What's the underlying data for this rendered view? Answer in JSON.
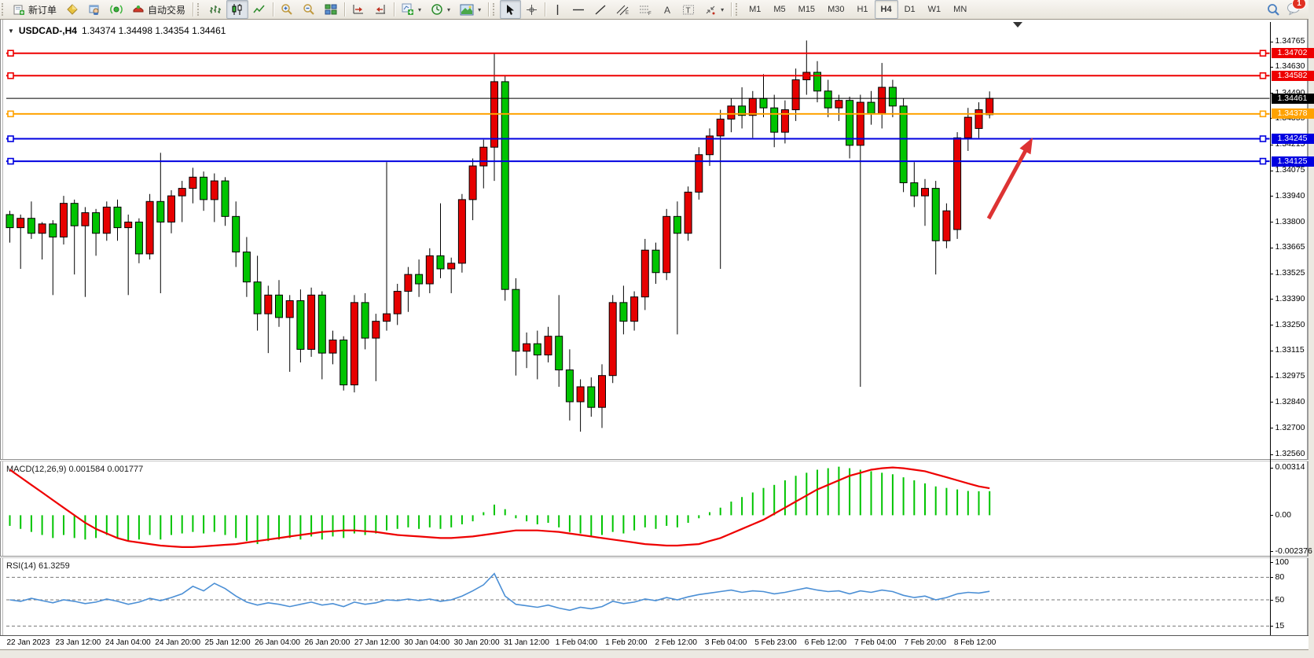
{
  "toolbar": {
    "new_order": "新订单",
    "auto_trading": "自动交易",
    "timeframes": [
      "M1",
      "M5",
      "M15",
      "M30",
      "H1",
      "H4",
      "D1",
      "W1",
      "MN"
    ],
    "active_timeframe": "H4",
    "notification_count": "1"
  },
  "chart": {
    "title_symbol": "USDCAD-,H4",
    "title_quote": "1.34374 1.34498 1.34354 1.34461",
    "open": "1.34374",
    "high": "1.34498",
    "low": "1.34354",
    "close": "1.34461"
  },
  "chart_data": {
    "type": "candlestick",
    "symbol": "USDCAD-",
    "period": "H4",
    "up_color": "#e60000",
    "down_color": "#00c400",
    "price_axis_ticks": [
      "1.34765",
      "1.34630",
      "1.34490",
      "1.34355",
      "1.34215",
      "1.34075",
      "1.33940",
      "1.33800",
      "1.33665",
      "1.33525",
      "1.33390",
      "1.33250",
      "1.33115",
      "1.32975",
      "1.32840",
      "1.32700",
      "1.32560"
    ],
    "levels": [
      {
        "price": 1.34702,
        "label": "1.34702",
        "color": "#ee0000",
        "handles": true
      },
      {
        "price": 1.34582,
        "label": "1.34582",
        "color": "#ee0000",
        "handles": true
      },
      {
        "price": 1.34461,
        "label": "1.34461",
        "color": "#000000",
        "handles": false
      },
      {
        "price": 1.34378,
        "label": "1.34378",
        "color": "#ffa200",
        "handles": true
      },
      {
        "price": 1.34245,
        "label": "1.34245",
        "color": "#0000e0",
        "handles": true
      },
      {
        "price": 1.34125,
        "label": "1.34125",
        "color": "#0000e0",
        "handles": true
      }
    ],
    "x_labels": [
      "22 Jan 2023",
      "23 Jan 12:00",
      "24 Jan 04:00",
      "24 Jan 20:00",
      "25 Jan 12:00",
      "26 Jan 04:00",
      "26 Jan 20:00",
      "27 Jan 12:00",
      "30 Jan 04:00",
      "30 Jan 20:00",
      "31 Jan 12:00",
      "1 Feb 04:00",
      "1 Feb 20:00",
      "2 Feb 12:00",
      "3 Feb 04:00",
      "5 Feb 23:00",
      "6 Feb 12:00",
      "7 Feb 04:00",
      "7 Feb 20:00",
      "8 Feb 12:00"
    ],
    "candles": [
      [
        1.3384,
        1.3386,
        1.3369,
        1.3377
      ],
      [
        1.3377,
        1.3384,
        1.3355,
        1.3382
      ],
      [
        1.3382,
        1.3391,
        1.3371,
        1.3374
      ],
      [
        1.3374,
        1.338,
        1.336,
        1.3379
      ],
      [
        1.3379,
        1.3381,
        1.3341,
        1.3372
      ],
      [
        1.3372,
        1.3394,
        1.3368,
        1.339
      ],
      [
        1.339,
        1.3392,
        1.3352,
        1.3378
      ],
      [
        1.3378,
        1.3388,
        1.334,
        1.3385
      ],
      [
        1.3385,
        1.3387,
        1.3362,
        1.3374
      ],
      [
        1.3374,
        1.3391,
        1.337,
        1.3388
      ],
      [
        1.3388,
        1.3392,
        1.337,
        1.3377
      ],
      [
        1.3377,
        1.3384,
        1.3341,
        1.338
      ],
      [
        1.338,
        1.3382,
        1.3358,
        1.3363
      ],
      [
        1.3363,
        1.3395,
        1.336,
        1.3391
      ],
      [
        1.3391,
        1.3417,
        1.3342,
        1.338
      ],
      [
        1.338,
        1.3397,
        1.3374,
        1.3394
      ],
      [
        1.3394,
        1.3402,
        1.338,
        1.3398
      ],
      [
        1.3398,
        1.3409,
        1.339,
        1.3404
      ],
      [
        1.3404,
        1.3407,
        1.3386,
        1.3392
      ],
      [
        1.3392,
        1.3406,
        1.338,
        1.3402
      ],
      [
        1.3402,
        1.3404,
        1.3378,
        1.3383
      ],
      [
        1.3383,
        1.3391,
        1.3356,
        1.3364
      ],
      [
        1.3364,
        1.3372,
        1.334,
        1.3348
      ],
      [
        1.3348,
        1.3362,
        1.3322,
        1.3331
      ],
      [
        1.3331,
        1.3346,
        1.331,
        1.3341
      ],
      [
        1.3341,
        1.3349,
        1.3324,
        1.3329
      ],
      [
        1.3329,
        1.3341,
        1.33,
        1.3338
      ],
      [
        1.3338,
        1.3344,
        1.3305,
        1.3312
      ],
      [
        1.3312,
        1.3345,
        1.3308,
        1.3341
      ],
      [
        1.3341,
        1.3343,
        1.3296,
        1.331
      ],
      [
        1.331,
        1.3322,
        1.3304,
        1.3317
      ],
      [
        1.3317,
        1.3319,
        1.329,
        1.3293
      ],
      [
        1.3293,
        1.3341,
        1.3289,
        1.3337
      ],
      [
        1.3337,
        1.3342,
        1.3312,
        1.3318
      ],
      [
        1.3318,
        1.3331,
        1.3295,
        1.3327
      ],
      [
        1.3327,
        1.3412,
        1.3322,
        1.3331
      ],
      [
        1.3331,
        1.3347,
        1.3325,
        1.3343
      ],
      [
        1.3343,
        1.3356,
        1.3332,
        1.3352
      ],
      [
        1.3352,
        1.336,
        1.334,
        1.3347
      ],
      [
        1.3347,
        1.3366,
        1.3342,
        1.3362
      ],
      [
        1.3362,
        1.339,
        1.335,
        1.3355
      ],
      [
        1.3355,
        1.3361,
        1.3342,
        1.3358
      ],
      [
        1.3358,
        1.3395,
        1.3353,
        1.3392
      ],
      [
        1.3392,
        1.3414,
        1.3381,
        1.341
      ],
      [
        1.341,
        1.3424,
        1.3398,
        1.342
      ],
      [
        1.342,
        1.347,
        1.3402,
        1.3455
      ],
      [
        1.3455,
        1.3458,
        1.3338,
        1.3344
      ],
      [
        1.3344,
        1.335,
        1.3298,
        1.3311
      ],
      [
        1.3311,
        1.3321,
        1.3302,
        1.3315
      ],
      [
        1.3315,
        1.3322,
        1.3296,
        1.3309
      ],
      [
        1.3309,
        1.3324,
        1.3305,
        1.3319
      ],
      [
        1.3319,
        1.3341,
        1.3292,
        1.3301
      ],
      [
        1.3301,
        1.3312,
        1.3274,
        1.3284
      ],
      [
        1.3284,
        1.3296,
        1.3268,
        1.3292
      ],
      [
        1.3292,
        1.3297,
        1.3276,
        1.3281
      ],
      [
        1.3281,
        1.3304,
        1.327,
        1.3298
      ],
      [
        1.3298,
        1.3341,
        1.3294,
        1.3337
      ],
      [
        1.3337,
        1.3346,
        1.332,
        1.3327
      ],
      [
        1.3327,
        1.3343,
        1.3322,
        1.334
      ],
      [
        1.334,
        1.3371,
        1.3333,
        1.3365
      ],
      [
        1.3365,
        1.3369,
        1.3347,
        1.3353
      ],
      [
        1.3353,
        1.3387,
        1.3349,
        1.3383
      ],
      [
        1.3383,
        1.3391,
        1.332,
        1.3374
      ],
      [
        1.3374,
        1.3399,
        1.337,
        1.3396
      ],
      [
        1.3396,
        1.342,
        1.3392,
        1.3416
      ],
      [
        1.3416,
        1.343,
        1.341,
        1.3426
      ],
      [
        1.3426,
        1.344,
        1.3355,
        1.3435
      ],
      [
        1.3435,
        1.3446,
        1.3428,
        1.3442
      ],
      [
        1.3442,
        1.3452,
        1.343,
        1.3437
      ],
      [
        1.3437,
        1.345,
        1.3425,
        1.3446
      ],
      [
        1.3446,
        1.3459,
        1.3436,
        1.3441
      ],
      [
        1.3441,
        1.3448,
        1.342,
        1.3428
      ],
      [
        1.3428,
        1.3445,
        1.3422,
        1.344
      ],
      [
        1.344,
        1.3462,
        1.3434,
        1.3456
      ],
      [
        1.3456,
        1.3477,
        1.3448,
        1.346
      ],
      [
        1.346,
        1.3466,
        1.3444,
        1.345
      ],
      [
        1.345,
        1.3456,
        1.3436,
        1.3441
      ],
      [
        1.3441,
        1.3448,
        1.3434,
        1.3445
      ],
      [
        1.3445,
        1.3447,
        1.3414,
        1.3421
      ],
      [
        1.3421,
        1.3448,
        1.3292,
        1.3444
      ],
      [
        1.3444,
        1.345,
        1.3432,
        1.3438
      ],
      [
        1.3438,
        1.3465,
        1.343,
        1.3452
      ],
      [
        1.3452,
        1.3456,
        1.3436,
        1.3442
      ],
      [
        1.3442,
        1.3446,
        1.3396,
        1.3401
      ],
      [
        1.3401,
        1.3412,
        1.3388,
        1.3394
      ],
      [
        1.3394,
        1.3403,
        1.3378,
        1.3398
      ],
      [
        1.3398,
        1.3402,
        1.3352,
        1.337
      ],
      [
        1.337,
        1.339,
        1.3366,
        1.3386
      ],
      [
        1.3376,
        1.3428,
        1.3371,
        1.3425
      ],
      [
        1.3425,
        1.3441,
        1.3418,
        1.3436
      ],
      [
        1.343,
        1.3444,
        1.3425,
        1.344
      ],
      [
        1.34374,
        1.34498,
        1.34354,
        1.34461
      ]
    ],
    "macd": {
      "label": "MACD(12,26,9) 0.001584 0.001777",
      "main_value": "0.001584",
      "signal_value": "0.001777",
      "axis_labels": [
        "0.00314",
        "0.00",
        "-0.002376"
      ],
      "histogram_color": "#00c400",
      "signal_color": "#ee0000",
      "histogram": [
        -0.0007,
        -0.0009,
        -0.0011,
        -0.0013,
        -0.0015,
        -0.0013,
        -0.0015,
        -0.0016,
        -0.0015,
        -0.0013,
        -0.0015,
        -0.0017,
        -0.0016,
        -0.0013,
        -0.0016,
        -0.0013,
        -0.0012,
        -0.0011,
        -0.0012,
        -0.0011,
        -0.0013,
        -0.0015,
        -0.0017,
        -0.0019,
        -0.0017,
        -0.0016,
        -0.0015,
        -0.0016,
        -0.0014,
        -0.0016,
        -0.0014,
        -0.0015,
        -0.0012,
        -0.0013,
        -0.0012,
        -0.001,
        -0.0009,
        -0.0008,
        -0.0009,
        -0.0008,
        -0.0009,
        -0.0008,
        -0.0006,
        -0.0004,
        0.0002,
        0.0007,
        0.0004,
        -0.0002,
        -0.0004,
        -0.0006,
        -0.0005,
        -0.0008,
        -0.0011,
        -0.0012,
        -0.0014,
        -0.0013,
        -0.0011,
        -0.0012,
        -0.001,
        -0.0008,
        -0.0009,
        -0.0007,
        -0.0008,
        -0.0005,
        -0.0002,
        0.0002,
        0.0005,
        0.0009,
        0.0012,
        0.0015,
        0.0018,
        0.002,
        0.0023,
        0.0026,
        0.0028,
        0.003,
        0.0031,
        0.0032,
        0.0031,
        0.003,
        0.0029,
        0.0028,
        0.0027,
        0.0025,
        0.0023,
        0.0021,
        0.0019,
        0.0018,
        0.0017,
        0.0016,
        0.00158,
        0.001584
      ],
      "signal": [
        0.003,
        0.0025,
        0.002,
        0.0015,
        0.001,
        0.0005,
        0.0,
        -0.0005,
        -0.0009,
        -0.0012,
        -0.0015,
        -0.0017,
        -0.0018,
        -0.0019,
        -0.002,
        -0.00205,
        -0.0021,
        -0.0021,
        -0.00205,
        -0.002,
        -0.00195,
        -0.0019,
        -0.0018,
        -0.0017,
        -0.0016,
        -0.0015,
        -0.0014,
        -0.0013,
        -0.0012,
        -0.0011,
        -0.00105,
        -0.001,
        -0.001,
        -0.00105,
        -0.0011,
        -0.0012,
        -0.0013,
        -0.00135,
        -0.0014,
        -0.00145,
        -0.0015,
        -0.0015,
        -0.00145,
        -0.0014,
        -0.0013,
        -0.0012,
        -0.0011,
        -0.001,
        -0.001,
        -0.001,
        -0.00105,
        -0.0011,
        -0.0012,
        -0.0013,
        -0.0014,
        -0.0015,
        -0.0016,
        -0.0017,
        -0.0018,
        -0.0019,
        -0.00195,
        -0.002,
        -0.002,
        -0.00195,
        -0.0019,
        -0.0017,
        -0.0015,
        -0.0012,
        -0.0009,
        -0.0006,
        -0.0003,
        0.0001,
        0.0005,
        0.0009,
        0.0013,
        0.0017,
        0.002,
        0.0023,
        0.0026,
        0.0028,
        0.003,
        0.0031,
        0.00315,
        0.0031,
        0.003,
        0.0029,
        0.0027,
        0.0025,
        0.0023,
        0.0021,
        0.0019,
        0.001777
      ]
    },
    "rsi": {
      "label": "RSI(14) 61.3259",
      "value": "61.3259",
      "axis_labels": [
        "100",
        "80",
        "50",
        "15"
      ],
      "line_color": "#4b8fd5",
      "series": [
        50,
        48,
        52,
        49,
        46,
        50,
        48,
        45,
        47,
        51,
        48,
        44,
        47,
        52,
        49,
        53,
        58,
        68,
        62,
        72,
        65,
        55,
        47,
        43,
        46,
        44,
        41,
        44,
        47,
        43,
        45,
        41,
        47,
        44,
        46,
        50,
        49,
        51,
        49,
        51,
        48,
        50,
        55,
        62,
        70,
        85,
        55,
        44,
        42,
        40,
        43,
        39,
        36,
        40,
        38,
        41,
        48,
        45,
        47,
        51,
        49,
        53,
        50,
        54,
        57,
        59,
        61,
        63,
        60,
        62,
        61,
        58,
        60,
        63,
        66,
        63,
        61,
        62,
        58,
        62,
        60,
        63,
        61,
        56,
        53,
        55,
        50,
        53,
        58,
        60,
        59,
        61.33
      ],
      "levels": [
        80,
        50,
        15
      ]
    },
    "annotation_arrow": {
      "from_x": 1258,
      "from_y": 278,
      "to_x": 1314,
      "to_y": 175,
      "color": "#dd3333"
    }
  }
}
